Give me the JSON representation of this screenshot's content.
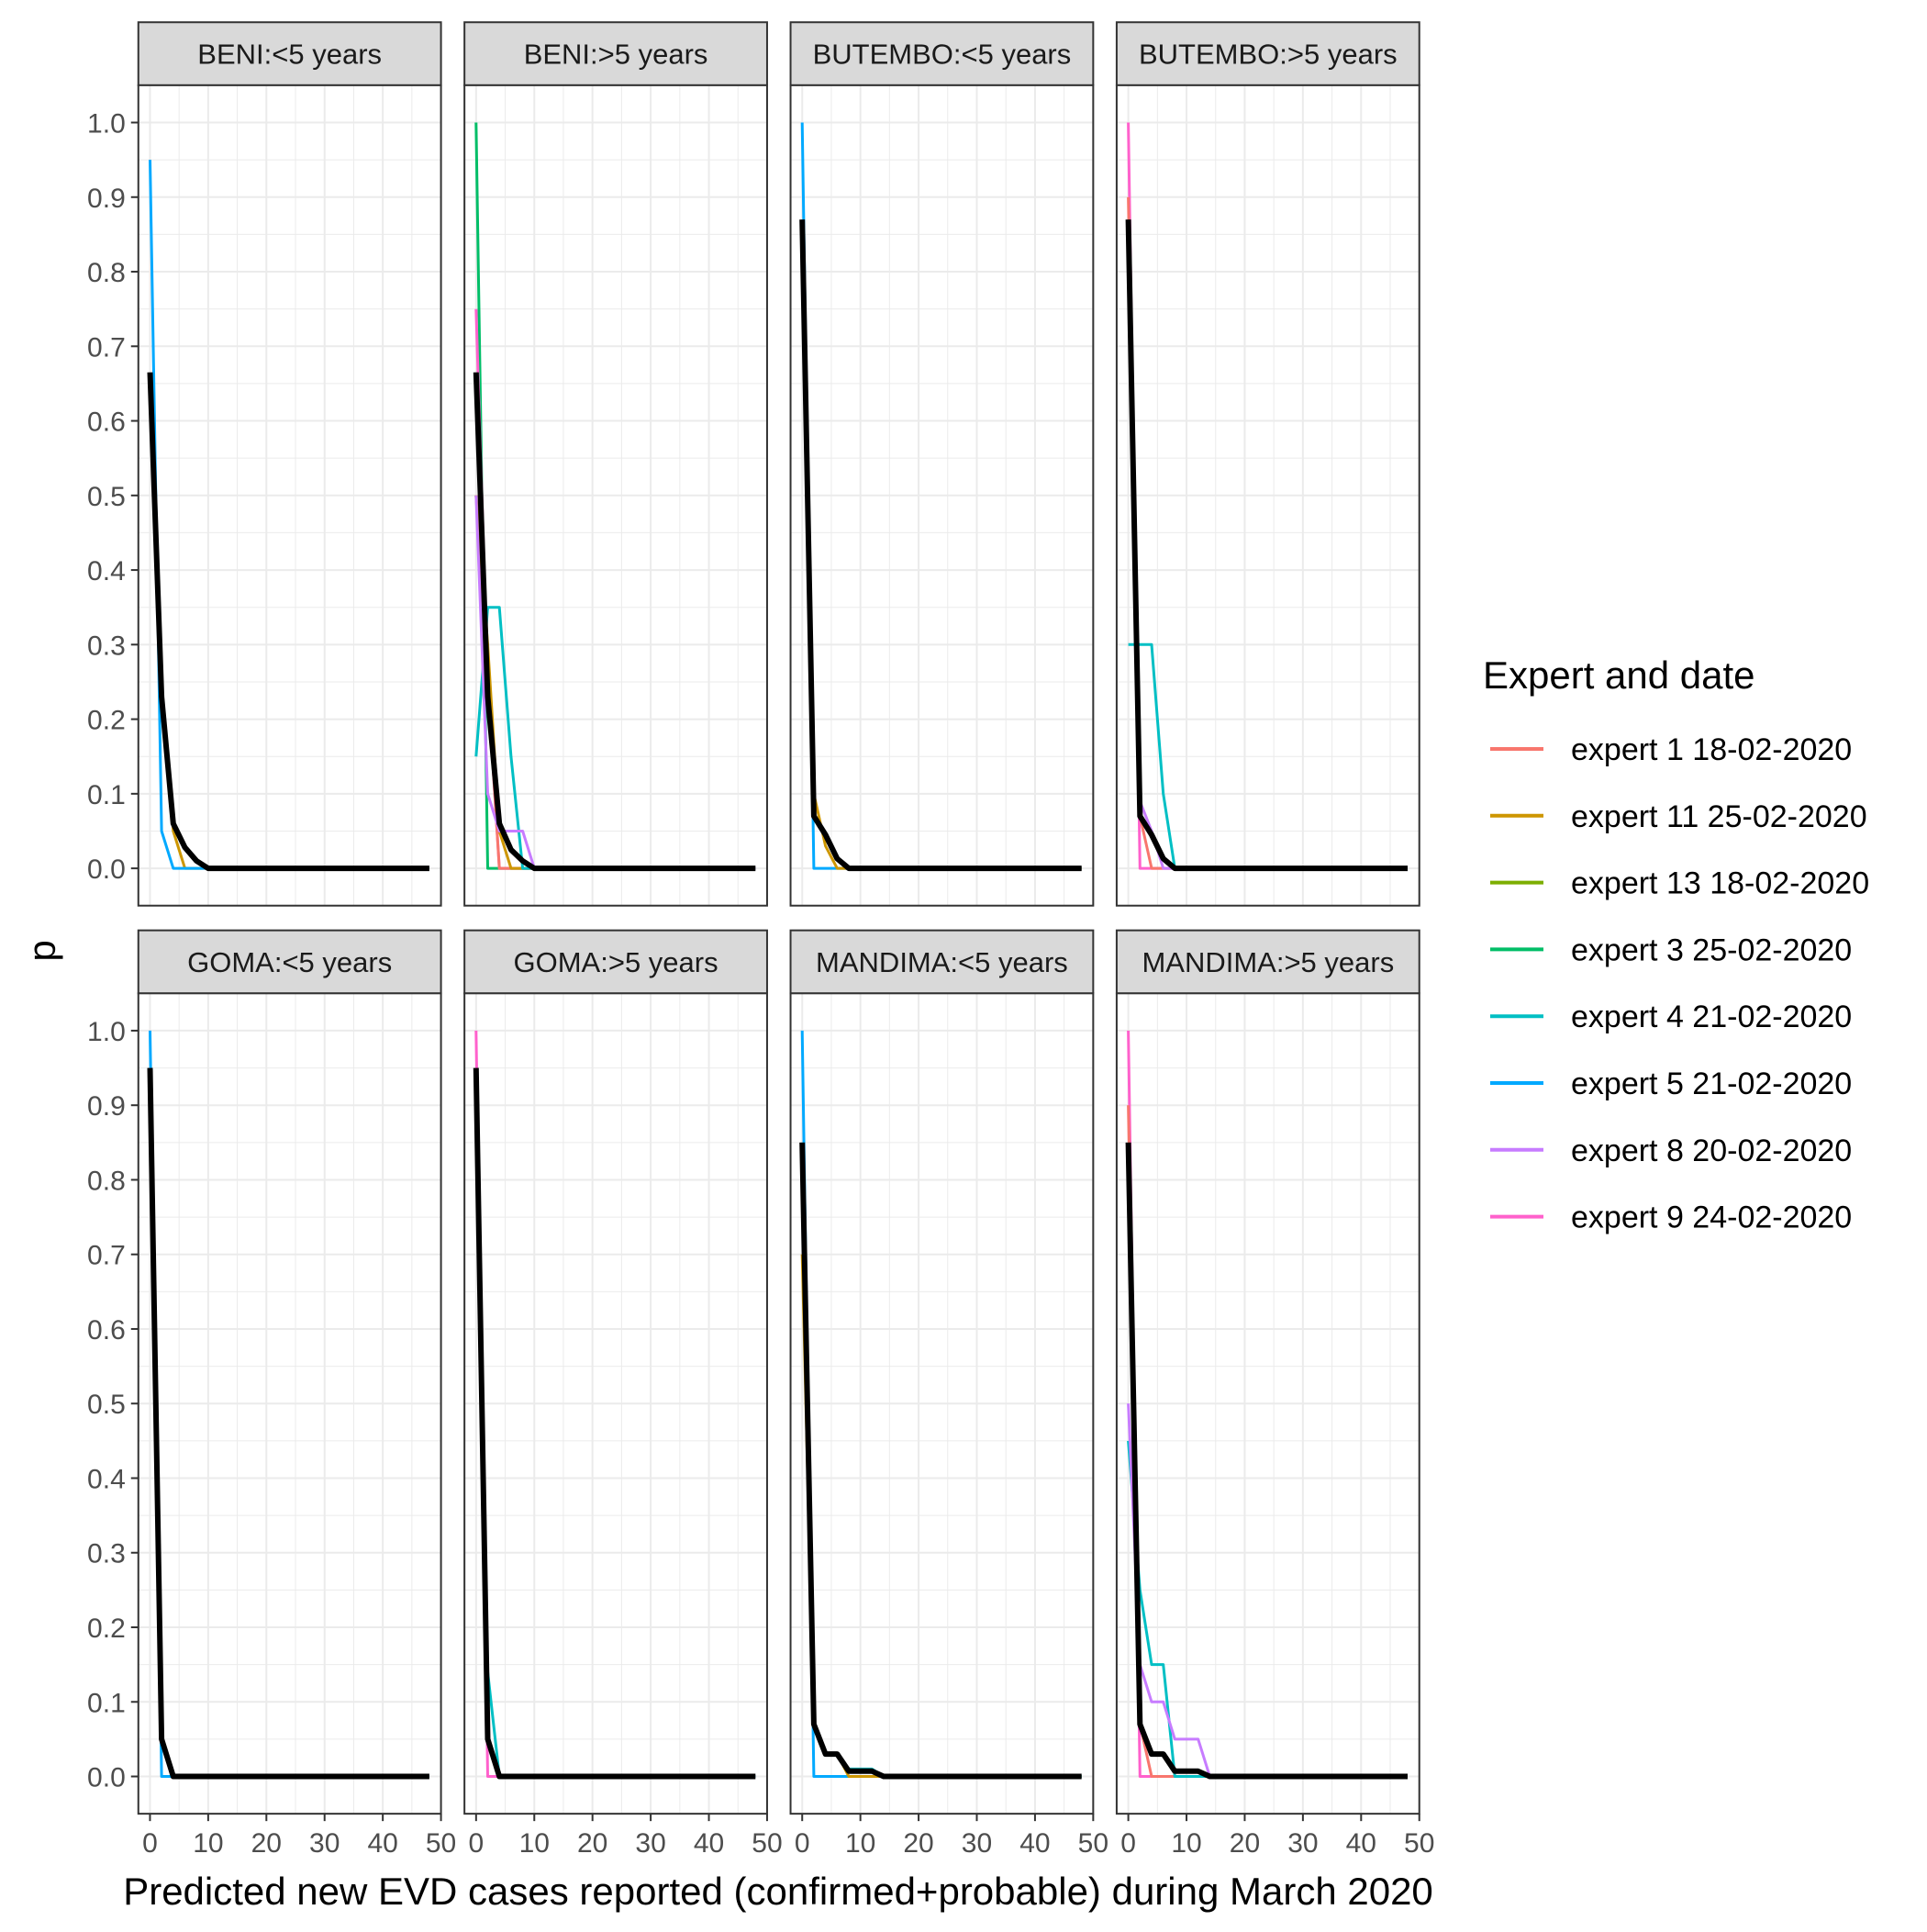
{
  "chart_data": {
    "type": "line",
    "facet_layout": "2x4",
    "xlabel": "Predicted new EVD cases reported (confirmed+probable) during March 2020",
    "ylabel": "p",
    "xlim": [
      -2,
      50
    ],
    "ylim": [
      -0.05,
      1.05
    ],
    "x_ticks": [
      0,
      10,
      20,
      30,
      40,
      50
    ],
    "y_ticks": [
      0.0,
      0.1,
      0.2,
      0.3,
      0.4,
      0.5,
      0.6,
      0.7,
      0.8,
      0.9,
      1.0
    ],
    "grid": true,
    "legend": {
      "title": "Expert and date",
      "position": "right",
      "entries": [
        {
          "label": "expert 1 18-02-2020",
          "color": "#F8766D"
        },
        {
          "label": "expert 11 25-02-2020",
          "color": "#CD9600"
        },
        {
          "label": "expert 13 18-02-2020",
          "color": "#7CAE00"
        },
        {
          "label": "expert 3 25-02-2020",
          "color": "#00BE67"
        },
        {
          "label": "expert 4 21-02-2020",
          "color": "#00BFC4"
        },
        {
          "label": "expert 5 21-02-2020",
          "color": "#00A9FF"
        },
        {
          "label": "expert 8 20-02-2020",
          "color": "#C77CFF"
        },
        {
          "label": "expert 9 24-02-2020",
          "color": "#FF61CC"
        }
      ]
    },
    "consensus_color": "#000000",
    "facets": [
      {
        "title": "BENI:<5 years",
        "series": [
          {
            "name": "expert 11 25-02-2020",
            "x": [
              0,
              2,
              4,
              6,
              48
            ],
            "y": [
              0.65,
              0.25,
              0.05,
              0,
              0
            ]
          },
          {
            "name": "expert 5 21-02-2020",
            "x": [
              0,
              2,
              4,
              48
            ],
            "y": [
              0.95,
              0.05,
              0,
              0
            ]
          }
        ],
        "consensus": {
          "x": [
            0,
            2,
            4,
            6,
            8,
            10,
            48
          ],
          "y": [
            0.665,
            0.23,
            0.06,
            0.028,
            0.01,
            0,
            0
          ]
        }
      },
      {
        "title": "BENI:>5 years",
        "series": [
          {
            "name": "expert 3 25-02-2020",
            "x": [
              0,
              2,
              48
            ],
            "y": [
              1.0,
              0,
              0
            ]
          },
          {
            "name": "expert 9 24-02-2020",
            "x": [
              0,
              2,
              4,
              48
            ],
            "y": [
              0.75,
              0.25,
              0,
              0
            ]
          },
          {
            "name": "expert 1 18-02-2020",
            "x": [
              0,
              2,
              4,
              48
            ],
            "y": [
              0.5,
              0.25,
              0,
              0
            ]
          },
          {
            "name": "expert 11 25-02-2020",
            "x": [
              0,
              2,
              4,
              6,
              48
            ],
            "y": [
              0.5,
              0.3,
              0.05,
              0,
              0
            ]
          },
          {
            "name": "expert 4 21-02-2020",
            "x": [
              0,
              2,
              4,
              6,
              8,
              48
            ],
            "y": [
              0.15,
              0.35,
              0.35,
              0.15,
              0,
              0
            ]
          },
          {
            "name": "expert 8 20-02-2020",
            "x": [
              0,
              2,
              4,
              6,
              8,
              10,
              48
            ],
            "y": [
              0.5,
              0.1,
              0.05,
              0.05,
              0.05,
              0,
              0
            ]
          }
        ],
        "consensus": {
          "x": [
            0,
            2,
            4,
            6,
            8,
            10,
            48
          ],
          "y": [
            0.665,
            0.23,
            0.06,
            0.025,
            0.01,
            0,
            0
          ]
        }
      },
      {
        "title": "BUTEMBO:<5 years",
        "series": [
          {
            "name": "expert 5 21-02-2020",
            "x": [
              0,
              2,
              4,
              48
            ],
            "y": [
              1.0,
              0,
              0,
              0
            ]
          },
          {
            "name": "expert 11 25-02-2020",
            "x": [
              0,
              2,
              4,
              6,
              48
            ],
            "y": [
              0.8,
              0.1,
              0.03,
              0,
              0
            ]
          }
        ],
        "consensus": {
          "x": [
            0,
            2,
            4,
            6,
            8,
            48
          ],
          "y": [
            0.87,
            0.07,
            0.045,
            0.013,
            0,
            0
          ]
        }
      },
      {
        "title": "BUTEMBO:>5 years",
        "series": [
          {
            "name": "expert 9 24-02-2020",
            "x": [
              0,
              2,
              48
            ],
            "y": [
              1.0,
              0,
              0
            ]
          },
          {
            "name": "expert 1 18-02-2020",
            "x": [
              0,
              2,
              4,
              48
            ],
            "y": [
              0.9,
              0.07,
              0,
              0
            ]
          },
          {
            "name": "expert 4 21-02-2020",
            "x": [
              0,
              2,
              4,
              6,
              8,
              48
            ],
            "y": [
              0.3,
              0.3,
              0.3,
              0.1,
              0,
              0
            ]
          },
          {
            "name": "expert 8 20-02-2020",
            "x": [
              0,
              2,
              4,
              6,
              48
            ],
            "y": [
              0.85,
              0.09,
              0.05,
              0,
              0
            ]
          }
        ],
        "consensus": {
          "x": [
            0,
            2,
            4,
            6,
            8,
            48
          ],
          "y": [
            0.87,
            0.07,
            0.045,
            0.013,
            0,
            0
          ]
        }
      },
      {
        "title": "GOMA:<5 years",
        "series": [
          {
            "name": "expert 5 21-02-2020",
            "x": [
              0,
              2,
              4,
              48
            ],
            "y": [
              1.0,
              0,
              0,
              0
            ]
          }
        ],
        "consensus": {
          "x": [
            0,
            2,
            4,
            48
          ],
          "y": [
            0.95,
            0.05,
            0,
            0
          ]
        }
      },
      {
        "title": "GOMA:>5 years",
        "series": [
          {
            "name": "expert 9 24-02-2020",
            "x": [
              0,
              2,
              48
            ],
            "y": [
              1.0,
              0,
              0
            ]
          },
          {
            "name": "expert 4 21-02-2020",
            "x": [
              0,
              2,
              4,
              48
            ],
            "y": [
              0.9,
              0.14,
              0,
              0
            ]
          }
        ],
        "consensus": {
          "x": [
            0,
            2,
            4,
            48
          ],
          "y": [
            0.95,
            0.05,
            0,
            0
          ]
        }
      },
      {
        "title": "MANDIMA:<5 years",
        "series": [
          {
            "name": "expert 5 21-02-2020",
            "x": [
              0,
              2,
              4,
              48
            ],
            "y": [
              1.0,
              0,
              0,
              0
            ]
          },
          {
            "name": "expert 11 25-02-2020",
            "x": [
              0,
              2,
              4,
              6,
              8,
              48
            ],
            "y": [
              0.7,
              0.07,
              0.03,
              0.03,
              0,
              0
            ]
          },
          {
            "name": "expert 4 21-02-2020",
            "x": [
              0,
              2,
              4,
              6,
              8,
              10,
              12,
              14,
              48
            ],
            "y": [
              0.85,
              0.07,
              0.03,
              0.03,
              0.01,
              0.01,
              0.01,
              0,
              0
            ]
          }
        ],
        "consensus": {
          "x": [
            0,
            2,
            4,
            6,
            8,
            10,
            12,
            14,
            48
          ],
          "y": [
            0.85,
            0.07,
            0.03,
            0.03,
            0.007,
            0.007,
            0.007,
            0,
            0
          ]
        }
      },
      {
        "title": "MANDIMA:>5 years",
        "series": [
          {
            "name": "expert 9 24-02-2020",
            "x": [
              0,
              2,
              48
            ],
            "y": [
              1.0,
              0,
              0
            ]
          },
          {
            "name": "expert 1 18-02-2020",
            "x": [
              0,
              2,
              4,
              48
            ],
            "y": [
              0.9,
              0.07,
              0,
              0
            ]
          },
          {
            "name": "expert 4 21-02-2020",
            "x": [
              0,
              2,
              4,
              6,
              8,
              48
            ],
            "y": [
              0.45,
              0.25,
              0.15,
              0.15,
              0,
              0
            ]
          },
          {
            "name": "expert 8 20-02-2020",
            "x": [
              0,
              2,
              4,
              6,
              8,
              10,
              12,
              14,
              48
            ],
            "y": [
              0.5,
              0.15,
              0.1,
              0.1,
              0.05,
              0.05,
              0.05,
              0,
              0
            ]
          }
        ],
        "consensus": {
          "x": [
            0,
            2,
            4,
            6,
            8,
            10,
            12,
            14,
            48
          ],
          "y": [
            0.85,
            0.07,
            0.03,
            0.03,
            0.007,
            0.007,
            0.007,
            0,
            0
          ]
        }
      }
    ]
  }
}
